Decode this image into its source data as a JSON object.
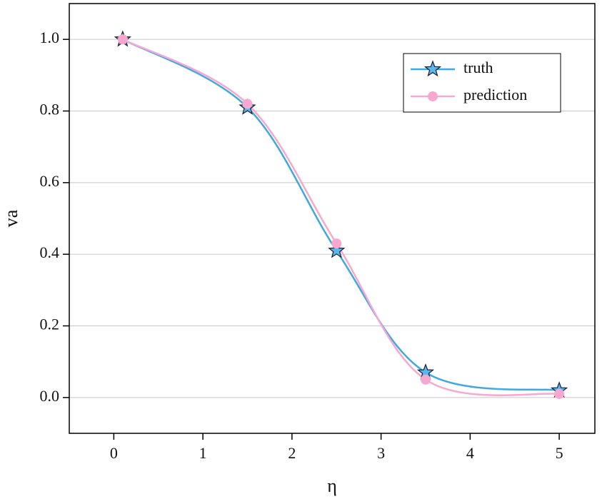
{
  "chart_data": {
    "type": "line",
    "x_label": "η",
    "y_label": "va",
    "x": [
      0.1,
      1.5,
      2.5,
      3.5,
      5
    ],
    "series": [
      {
        "name": "truth",
        "color": "#3fa9e0",
        "marker": "star",
        "values": [
          1.0,
          0.81,
          0.41,
          0.07,
          0.02
        ]
      },
      {
        "name": "prediction",
        "color": "#f7a8d0",
        "marker": "circle",
        "values": [
          1.0,
          0.82,
          0.43,
          0.05,
          0.01
        ]
      }
    ],
    "xlim": [
      -0.5,
      5.4
    ],
    "xticks": [
      0,
      1,
      2,
      3,
      4,
      5
    ],
    "ylim": [
      -0.1,
      1.1
    ],
    "yticks": [
      {
        "value": 0,
        "label": "0.0"
      },
      0.2,
      0.4,
      0.6,
      0.8,
      {
        "value": 1,
        "label": "1.0"
      }
    ],
    "grid": true,
    "legend": "upper right"
  }
}
